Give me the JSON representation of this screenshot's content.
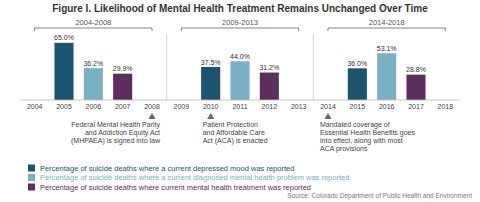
{
  "chart_data": {
    "type": "bar",
    "title": "Figure I. Likelihood of Mental Health Treatment Remains Unchanged Over Time",
    "source": "Source: Colorado Department of Public Health and Environment",
    "categories": [
      "2004",
      "2005",
      "2006",
      "2007",
      "2008",
      "2009",
      "2010",
      "2011",
      "2012",
      "2013",
      "2014",
      "2015",
      "2016",
      "2017",
      "2018"
    ],
    "series": [
      {
        "name": "Percentage of suicide deaths where a current depressed mood was reported",
        "color": "#1c5470",
        "values": [
          null,
          65.0,
          null,
          null,
          null,
          null,
          37.5,
          null,
          null,
          null,
          null,
          36.0,
          null,
          null,
          null
        ],
        "value_labels": [
          null,
          "65.0%",
          null,
          null,
          null,
          null,
          "37.5%",
          null,
          null,
          null,
          null,
          "36.0%",
          null,
          null,
          null
        ]
      },
      {
        "name": "Percentage of suicide deaths where a current diagnosed mental health problem was reported",
        "color": "#7ab0c4",
        "values": [
          null,
          null,
          36.2,
          null,
          null,
          null,
          null,
          44.0,
          null,
          null,
          null,
          null,
          53.1,
          null,
          null
        ],
        "value_labels": [
          null,
          null,
          "36.2%",
          null,
          null,
          null,
          null,
          "44.0%",
          null,
          null,
          null,
          null,
          "53.1%",
          null,
          null
        ]
      },
      {
        "name": "Percentage of suicide deaths where current mental health treatment was reported",
        "color": "#5c2d5e",
        "values": [
          null,
          null,
          null,
          29.9,
          null,
          null,
          null,
          null,
          31.2,
          null,
          null,
          null,
          null,
          28.8,
          null
        ],
        "value_labels": [
          null,
          null,
          null,
          "29.9%",
          null,
          null,
          null,
          null,
          "31.2%",
          null,
          null,
          null,
          null,
          "28.8%",
          null
        ]
      }
    ],
    "periods": [
      {
        "label": "2004-2008",
        "start": "2004",
        "end": "2008"
      },
      {
        "label": "2009-2013",
        "start": "2009",
        "end": "2013"
      },
      {
        "label": "2014-2018",
        "start": "2014",
        "end": "2018"
      }
    ],
    "annotations": [
      {
        "text": "Federal Mental Health Parity\nand Addiction Equity Act\n(MHPAEA) is signed into law",
        "category": "2008"
      },
      {
        "text": "Patient Protection\nand Affordable Care\nAct (ACA) is enacted",
        "category": "2010"
      },
      {
        "text": "Mandated coverage of\nEssential Health Benefits goes\ninto effect, along with most\nACA provisions",
        "category": "2014"
      }
    ],
    "ylim": [
      0,
      75
    ],
    "data_labels": true,
    "tick_labels": "x",
    "grid": false,
    "legend": "bottom"
  }
}
